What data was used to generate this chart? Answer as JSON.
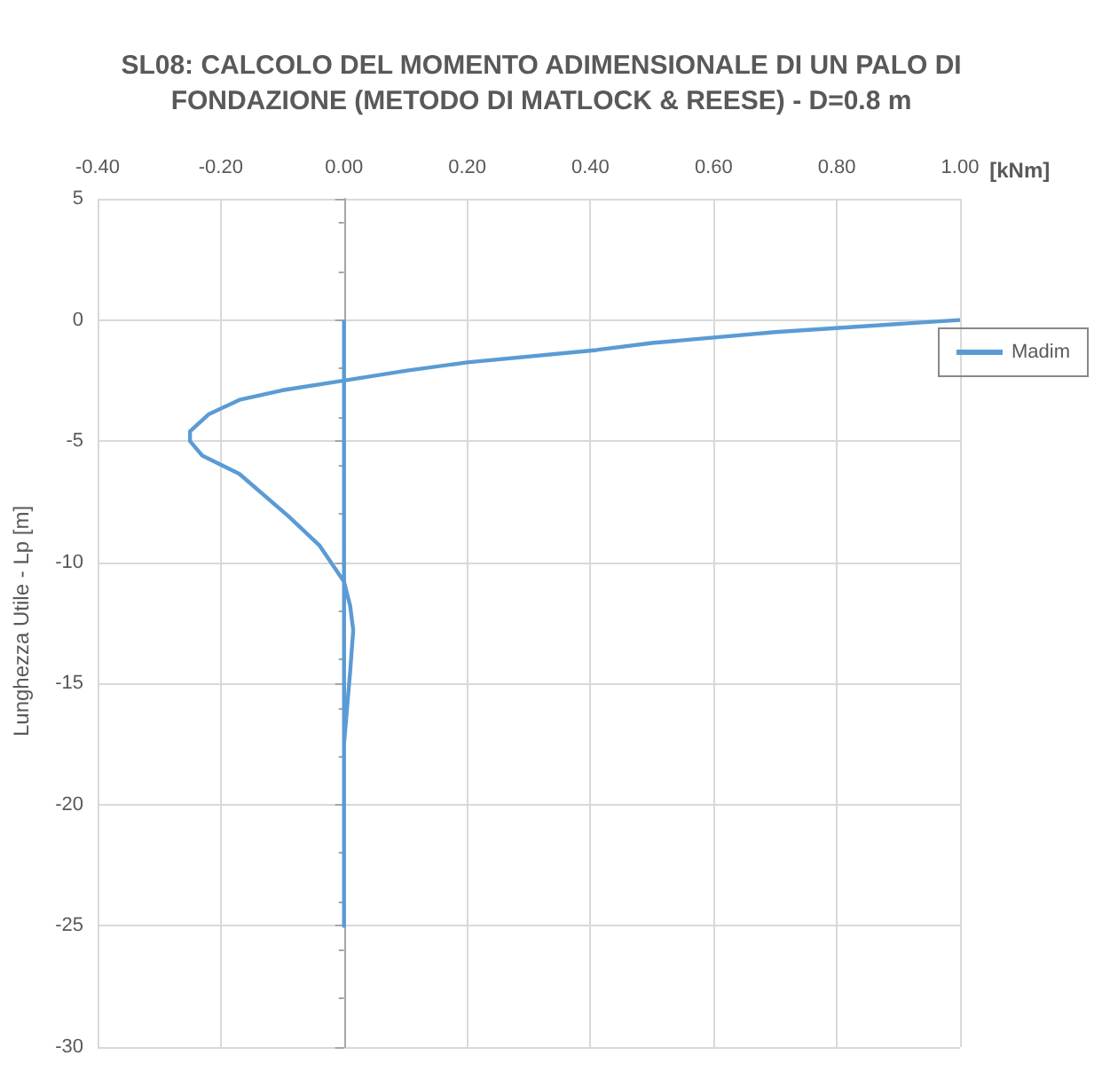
{
  "chart_data": {
    "type": "line",
    "title": "SL08: CALCOLO DEL MOMENTO ADIMENSIONALE DI UN PALO DI\nFONDAZIONE (METODO DI MATLOCK & REESE) - D=0.8 m",
    "xlabel": "[kNm]",
    "ylabel": "Lunghezza Utile - Lp [m]",
    "x": [
      1,
      0.91,
      0.7,
      0.5,
      0.41,
      0.2,
      0.1,
      0,
      -0.1,
      -0.17,
      -0.22,
      -0.25,
      -0.25,
      -0.23,
      -0.17,
      -0.09,
      -0.04,
      0,
      0.01,
      0.015,
      0.01,
      0.005,
      0,
      0,
      0
    ],
    "series": [
      {
        "name": "Madim",
        "color": "#5b9bd5",
        "values": [
          0,
          -0.15,
          -0.5,
          -0.95,
          -1.24,
          -1.75,
          -2.1,
          -2.5,
          -2.9,
          -3.3,
          -3.9,
          -4.6,
          -5,
          -5.6,
          -6.35,
          -8.1,
          -9.3,
          -10.8,
          -11.8,
          -12.8,
          -14.5,
          -16,
          -17.5,
          -25,
          0
        ]
      }
    ],
    "xlim": [
      -0.4,
      1
    ],
    "xticks": [
      {
        "value": -0.4,
        "label": "-0.40"
      },
      {
        "value": -0.2,
        "label": "-0.20"
      },
      {
        "value": 0,
        "label": "0.00"
      },
      {
        "value": 0.2,
        "label": "0.20"
      },
      {
        "value": 0.4,
        "label": "0.40"
      },
      {
        "value": 0.6,
        "label": "0.60"
      },
      {
        "value": 0.8,
        "label": "0.80"
      },
      {
        "value": 1,
        "label": "1.00"
      }
    ],
    "ylim": [
      -30,
      5
    ],
    "yticks": [
      -30,
      -25,
      -20,
      -15,
      -10,
      -5,
      0,
      5
    ],
    "grid": true,
    "legend": "right"
  }
}
